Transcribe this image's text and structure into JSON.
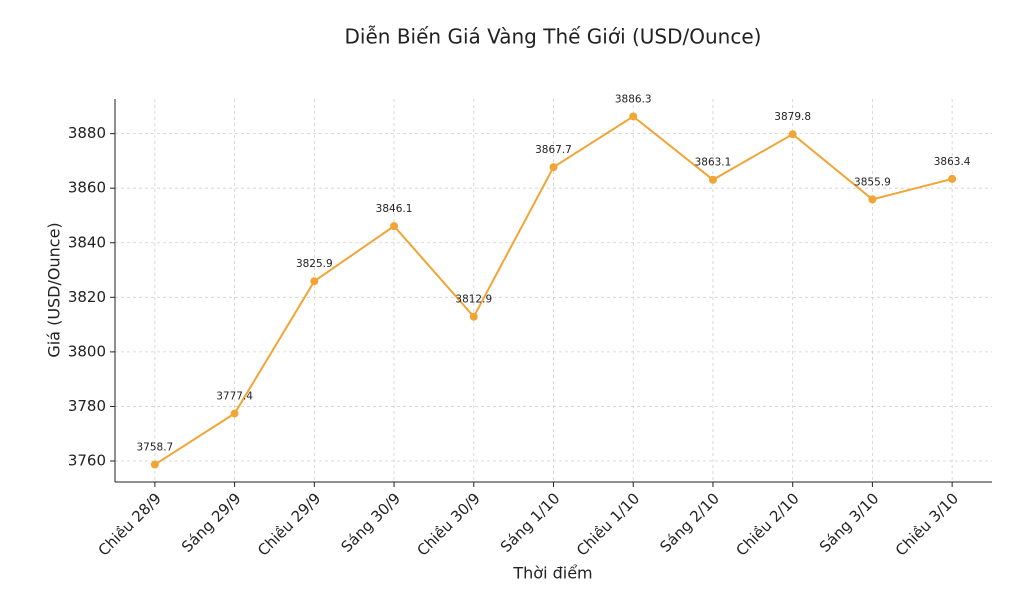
{
  "chart_data": {
    "type": "line",
    "title": "Diễn Biến Giá Vàng Thế Giới (USD/Ounce)",
    "x_label": "Thời điểm",
    "y_label": "Giá (USD/Ounce)",
    "categories": [
      "Chiều 28/9",
      "Sáng 29/9",
      "Chiều 29/9",
      "Sáng 30/9",
      "Chiều 30/9",
      "Sáng 1/10",
      "Chiều 1/10",
      "Sáng 2/10",
      "Chiều 2/10",
      "Sáng 3/10",
      "Chiều 3/10"
    ],
    "values": [
      3758.7,
      3777.4,
      3825.9,
      3846.1,
      3812.9,
      3867.7,
      3886.3,
      3863.1,
      3879.8,
      3855.9,
      3863.4
    ],
    "color": "#f0a535",
    "ylim": [
      3752.3,
      3892.7
    ],
    "yticks": [
      3760,
      3780,
      3800,
      3820,
      3840,
      3860,
      3880
    ],
    "grid": true
  }
}
